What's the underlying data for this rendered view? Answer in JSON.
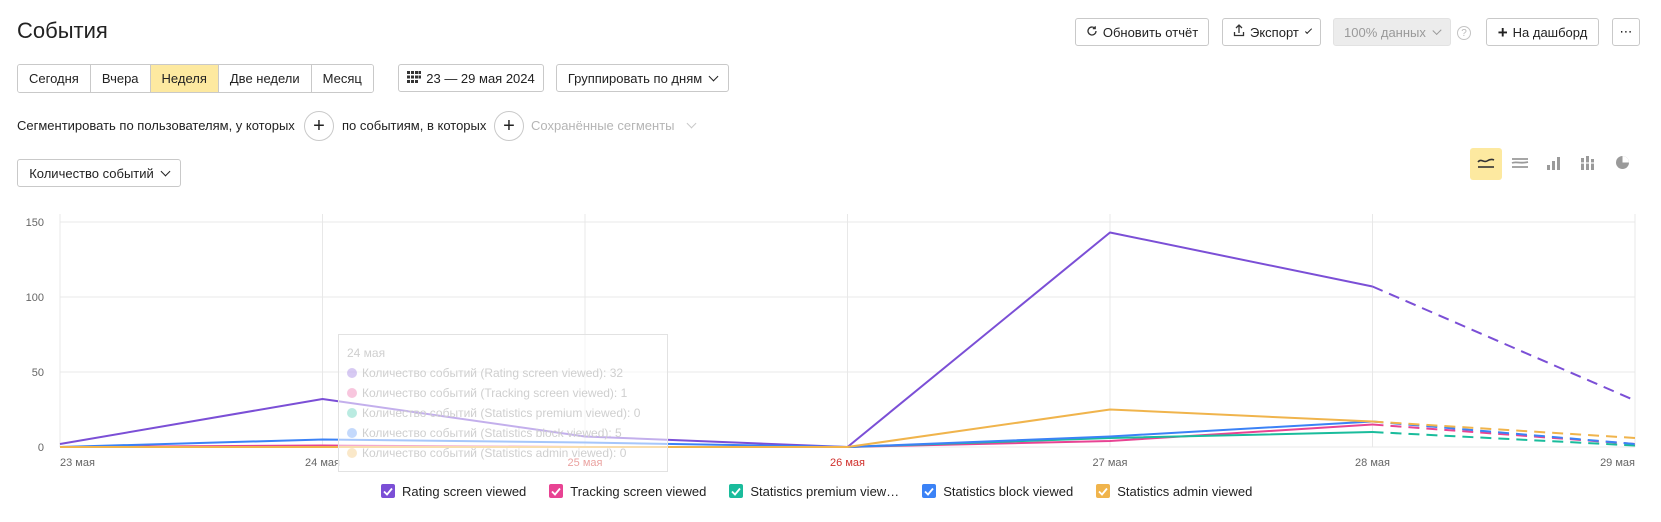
{
  "page": {
    "title": "События"
  },
  "toolbar": {
    "refresh_label": "Обновить отчёт",
    "export_label": "Экспорт",
    "sampling_label": "100% данных",
    "dashboard_label": "На дашборд",
    "more_label": "⋯",
    "help_label": "?"
  },
  "periods": {
    "items": [
      "Сегодня",
      "Вчера",
      "Неделя",
      "Две недели",
      "Месяц"
    ],
    "active": "Неделя"
  },
  "date_range": {
    "label": "23 — 29 мая 2024"
  },
  "grouping": {
    "label": "Группировать по дням"
  },
  "segmentation": {
    "users_label": "Сегментировать по пользователям, у которых",
    "events_label": "по событиям, в которых",
    "saved_segments_label": "Сохранённые сегменты"
  },
  "metric": {
    "label": "Количество событий"
  },
  "view_modes": [
    "line-chart-icon",
    "stacked-area-icon",
    "bar-chart-icon",
    "stacked-bar-icon",
    "pie-chart-icon"
  ],
  "tooltip": {
    "date": "24 мая",
    "rows": [
      {
        "text": "Количество событий (Rating screen viewed): 32",
        "color": "#7b4fd6"
      },
      {
        "text": "Количество событий (Tracking screen viewed): 1",
        "color": "#e84393"
      },
      {
        "text": "Количество событий (Statistics premium viewed): 0",
        "color": "#1abc9c"
      },
      {
        "text": "Количество событий (Statistics block viewed): 5",
        "color": "#3b82f6"
      },
      {
        "text": "Количество событий (Statistics admin viewed): 0",
        "color": "#f0b44c"
      }
    ]
  },
  "legend": [
    {
      "label": "Rating screen viewed",
      "color": "#7b4fd6"
    },
    {
      "label": "Tracking screen viewed",
      "color": "#e84393"
    },
    {
      "label": "Statistics premium view…",
      "color": "#1abc9c"
    },
    {
      "label": "Statistics block viewed",
      "color": "#3b82f6"
    },
    {
      "label": "Statistics admin viewed",
      "color": "#f0b44c"
    }
  ],
  "chart_data": {
    "type": "line",
    "x": [
      "23 мая",
      "24 мая",
      "25 мая",
      "26 мая",
      "27 мая",
      "28 мая",
      "29 мая"
    ],
    "weekend_labels": [
      "25 мая",
      "26 мая"
    ],
    "y_ticks": [
      0,
      50,
      100,
      150
    ],
    "ylim": [
      0,
      150
    ],
    "grid": true,
    "forecast_from_index": 5,
    "series": [
      {
        "name": "Rating screen viewed",
        "color": "#7b4fd6",
        "values": [
          2,
          32,
          7,
          0,
          143,
          107,
          31
        ]
      },
      {
        "name": "Tracking screen viewed",
        "color": "#e84393",
        "values": [
          0,
          1,
          0,
          0,
          4,
          15,
          2
        ]
      },
      {
        "name": "Statistics premium viewed",
        "color": "#1abc9c",
        "values": [
          0,
          0,
          0,
          0,
          6,
          10,
          1
        ]
      },
      {
        "name": "Statistics block viewed",
        "color": "#3b82f6",
        "values": [
          0,
          5,
          3,
          0,
          7,
          17,
          2
        ]
      },
      {
        "name": "Statistics admin viewed",
        "color": "#f0b44c",
        "values": [
          0,
          0,
          0,
          0,
          25,
          17,
          6
        ]
      }
    ]
  }
}
